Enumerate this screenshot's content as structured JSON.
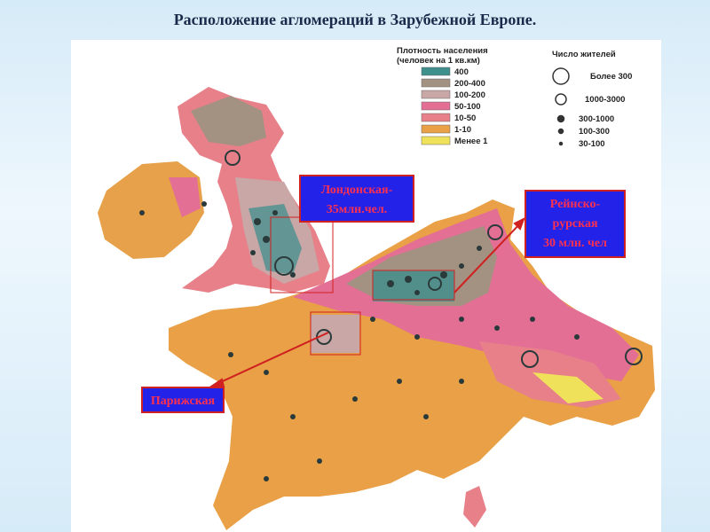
{
  "title": "Расположение агломераций в Зарубежной Европе.",
  "legend_density": {
    "title": [
      "Плотность населения",
      "(человек на 1 кв.км)"
    ],
    "items": [
      {
        "label": "400",
        "color": "#3f8f8c"
      },
      {
        "label": "200-400",
        "color": "#a39282"
      },
      {
        "label": "100-200",
        "color": "#c9a7a6"
      },
      {
        "label": "50-100",
        "color": "#e36f95"
      },
      {
        "label": "10-50",
        "color": "#e78089"
      },
      {
        "label": "1-10",
        "color": "#e9a046"
      },
      {
        "label": "Менее 1",
        "color": "#efe25a"
      }
    ]
  },
  "legend_population": {
    "title": "Число жителей",
    "items": [
      "Более 300",
      "1000-3000",
      "300-1000",
      "100-300",
      "30-100"
    ]
  },
  "callouts": [
    {
      "lines": [
        "Лондонская-",
        "35млн.чел."
      ]
    },
    {
      "lines": [
        "Рейнско-",
        "рурская",
        "30 млн. чел"
      ]
    },
    {
      "lines": [
        "Парижская"
      ]
    }
  ]
}
